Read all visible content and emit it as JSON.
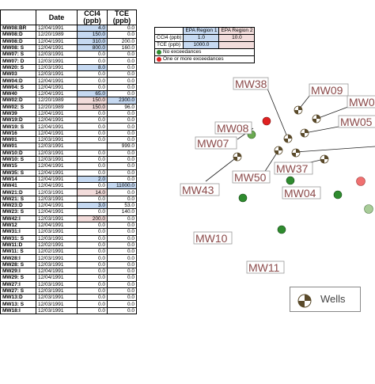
{
  "data_table": {
    "headers": {
      "well": "",
      "date": "Date",
      "ccl4": "CCl4\n(ppb)",
      "tce": "TCE\n(ppb)"
    },
    "rows": [
      {
        "well": "MW08:BR",
        "date": "12/04/1991",
        "ccl4": "4.0",
        "tce": "0.0",
        "ccl4_hl": "blue",
        "tce_hl": ""
      },
      {
        "well": "MW08:D",
        "date": "12/20/1989",
        "ccl4": "150.0",
        "tce": "0.0",
        "ccl4_hl": "blue",
        "tce_hl": ""
      },
      {
        "well": "MW08:D",
        "date": "12/04/1991",
        "ccl4": "310.0",
        "tce": "200.0",
        "ccl4_hl": "blue",
        "tce_hl": ""
      },
      {
        "well": "MW08: S",
        "date": "12/04/1991",
        "ccl4": "800.0",
        "tce": "160.0",
        "ccl4_hl": "blue",
        "tce_hl": ""
      },
      {
        "well": "MW07: S",
        "date": "12/03/1991",
        "ccl4": "0.0",
        "tce": "0.0",
        "ccl4_hl": "",
        "tce_hl": ""
      },
      {
        "well": "MW07: D",
        "date": "12/03/1991",
        "ccl4": "0.0",
        "tce": "0.0",
        "ccl4_hl": "",
        "tce_hl": ""
      },
      {
        "well": "MW20: S",
        "date": "12/03/1991",
        "ccl4": "8.0",
        "tce": "0.0",
        "ccl4_hl": "blue",
        "tce_hl": ""
      },
      {
        "well": "MW03",
        "date": "12/03/1991",
        "ccl4": "0.0",
        "tce": "0.0",
        "ccl4_hl": "",
        "tce_hl": ""
      },
      {
        "well": "MW04:D",
        "date": "12/04/1991",
        "ccl4": "0.0",
        "tce": "0.0",
        "ccl4_hl": "",
        "tce_hl": ""
      },
      {
        "well": "MW04: S",
        "date": "12/04/1991",
        "ccl4": "0.0",
        "tce": "0.0",
        "ccl4_hl": "",
        "tce_hl": ""
      },
      {
        "well": "MW40",
        "date": "12/04/1991",
        "ccl4": "65.0",
        "tce": "0.0",
        "ccl4_hl": "blue",
        "tce_hl": ""
      },
      {
        "well": "MW02:D",
        "date": "12/20/1989",
        "ccl4": "150.0",
        "tce": "2300.0",
        "ccl4_hl": "red",
        "tce_hl": "blue"
      },
      {
        "well": "MW02: S",
        "date": "12/20/1989",
        "ccl4": "150.0",
        "tce": "96.0",
        "ccl4_hl": "red",
        "tce_hl": ""
      },
      {
        "well": "MW39",
        "date": "12/04/1991",
        "ccl4": "0.0",
        "tce": "0.0",
        "ccl4_hl": "",
        "tce_hl": ""
      },
      {
        "well": "MW19:D",
        "date": "12/04/1991",
        "ccl4": "0.0",
        "tce": "0.0",
        "ccl4_hl": "",
        "tce_hl": ""
      },
      {
        "well": "MW19: S",
        "date": "12/04/1991",
        "ccl4": "0.0",
        "tce": "0.0",
        "ccl4_hl": "",
        "tce_hl": ""
      },
      {
        "well": "MW16",
        "date": "12/04/1991",
        "ccl4": "0.0",
        "tce": "0.0",
        "ccl4_hl": "",
        "tce_hl": ""
      },
      {
        "well": "MW01",
        "date": "12/03/1991",
        "ccl4": "0.0",
        "tce": "0.0",
        "ccl4_hl": "",
        "tce_hl": ""
      },
      {
        "well": "MW01",
        "date": "12/03/1991",
        "ccl4": "",
        "tce": "999.0",
        "ccl4_hl": "",
        "tce_hl": ""
      },
      {
        "well": "MW10:D",
        "date": "12/03/1991",
        "ccl4": "0.0",
        "tce": "0.0",
        "ccl4_hl": "",
        "tce_hl": ""
      },
      {
        "well": "MW10: S",
        "date": "12/03/1991",
        "ccl4": "0.0",
        "tce": "0.0",
        "ccl4_hl": "",
        "tce_hl": ""
      },
      {
        "well": "MW15",
        "date": "12/04/1991",
        "ccl4": "0.0",
        "tce": "0.0",
        "ccl4_hl": "",
        "tce_hl": ""
      },
      {
        "well": "MW35: S",
        "date": "12/04/1991",
        "ccl4": "0.0",
        "tce": "0.0",
        "ccl4_hl": "",
        "tce_hl": ""
      },
      {
        "well": "MW14",
        "date": "12/04/1991",
        "ccl4": "2.0",
        "tce": "0.0",
        "ccl4_hl": "blue",
        "tce_hl": ""
      },
      {
        "well": "MW41",
        "date": "12/04/1991",
        "ccl4": "0.0",
        "tce": "11000.0",
        "ccl4_hl": "",
        "tce_hl": "blue"
      },
      {
        "well": "MW21:D",
        "date": "12/03/1991",
        "ccl4": "14.0",
        "tce": "0.0",
        "ccl4_hl": "red",
        "tce_hl": ""
      },
      {
        "well": "MW21: S",
        "date": "12/03/1991",
        "ccl4": "0.0",
        "tce": "0.0",
        "ccl4_hl": "",
        "tce_hl": ""
      },
      {
        "well": "MW23:D",
        "date": "12/04/1991",
        "ccl4": "3.0",
        "tce": "53.0",
        "ccl4_hl": "blue",
        "tce_hl": ""
      },
      {
        "well": "MW23: S",
        "date": "12/04/1991",
        "ccl4": "0.0",
        "tce": "140.0",
        "ccl4_hl": "",
        "tce_hl": ""
      },
      {
        "well": "MW42:I",
        "date": "12/03/1991",
        "ccl4": "200.0",
        "tce": "0.0",
        "ccl4_hl": "red",
        "tce_hl": ""
      },
      {
        "well": "MW12",
        "date": "12/04/1991",
        "ccl4": "0.0",
        "tce": "0.0",
        "ccl4_hl": "",
        "tce_hl": ""
      },
      {
        "well": "MW31:I",
        "date": "12/03/1991",
        "ccl4": "0.0",
        "tce": "0.0",
        "ccl4_hl": "",
        "tce_hl": ""
      },
      {
        "well": "MW31: S",
        "date": "12/03/1991",
        "ccl4": "0.0",
        "tce": "0.0",
        "ccl4_hl": "",
        "tce_hl": ""
      },
      {
        "well": "MW11:D",
        "date": "12/02/1991",
        "ccl4": "0.0",
        "tce": "0.0",
        "ccl4_hl": "",
        "tce_hl": ""
      },
      {
        "well": "MW11: S",
        "date": "12/02/1991",
        "ccl4": "0.0",
        "tce": "0.0",
        "ccl4_hl": "",
        "tce_hl": ""
      },
      {
        "well": "MW28:I",
        "date": "12/03/1991",
        "ccl4": "0.0",
        "tce": "0.0",
        "ccl4_hl": "",
        "tce_hl": ""
      },
      {
        "well": "MW28: S",
        "date": "12/03/1991",
        "ccl4": "0.0",
        "tce": "0.0",
        "ccl4_hl": "",
        "tce_hl": ""
      },
      {
        "well": "MW29:I",
        "date": "12/04/1991",
        "ccl4": "0.0",
        "tce": "0.0",
        "ccl4_hl": "",
        "tce_hl": ""
      },
      {
        "well": "MW29: S",
        "date": "12/04/1991",
        "ccl4": "0.0",
        "tce": "0.0",
        "ccl4_hl": "",
        "tce_hl": ""
      },
      {
        "well": "MW27:I",
        "date": "12/03/1991",
        "ccl4": "0.0",
        "tce": "0.0",
        "ccl4_hl": "",
        "tce_hl": ""
      },
      {
        "well": "MW27: S",
        "date": "12/03/1991",
        "ccl4": "0.0",
        "tce": "0.0",
        "ccl4_hl": "",
        "tce_hl": ""
      },
      {
        "well": "MW13:D",
        "date": "12/03/1991",
        "ccl4": "0.0",
        "tce": "0.0",
        "ccl4_hl": "",
        "tce_hl": ""
      },
      {
        "well": "MW13: S",
        "date": "12/03/1991",
        "ccl4": "0.0",
        "tce": "0.0",
        "ccl4_hl": "",
        "tce_hl": ""
      },
      {
        "well": "MW18:I",
        "date": "12/03/1991",
        "ccl4": "0.0",
        "tce": "0.0",
        "ccl4_hl": "",
        "tce_hl": ""
      }
    ]
  },
  "epa_table": {
    "region1_label": "EPA Region 1",
    "region2_label": "EPA Region 2",
    "rows": [
      {
        "label": "CCl4 (ppb)",
        "r1": "1.0",
        "r2": "10.0"
      },
      {
        "label": "TCE (ppb)",
        "r1": "1000.0",
        "r2": ""
      }
    ],
    "legend_no_exceed": "No exceedances",
    "legend_exceed": "One or more exceedances"
  },
  "map": {
    "labels": {
      "mw38": "MW38",
      "mw09": "MW09",
      "mw0x": "MW0",
      "mw05": "MW05",
      "mw08": "MW08",
      "mw07": "MW07",
      "mw50": "MW50",
      "mw37": "MW37",
      "mw43": "MW43",
      "mw04": "MW04",
      "mw10": "MW10",
      "mw11": "MW11"
    }
  },
  "legend": {
    "wells_label": "Wells"
  },
  "colors": {
    "no_exceed": "#2e8b2e",
    "exceed": "#e02020",
    "label_text": "#8b4a4a",
    "highlight_blue": "#c6d9f1",
    "highlight_red": "#f2dcdb"
  }
}
